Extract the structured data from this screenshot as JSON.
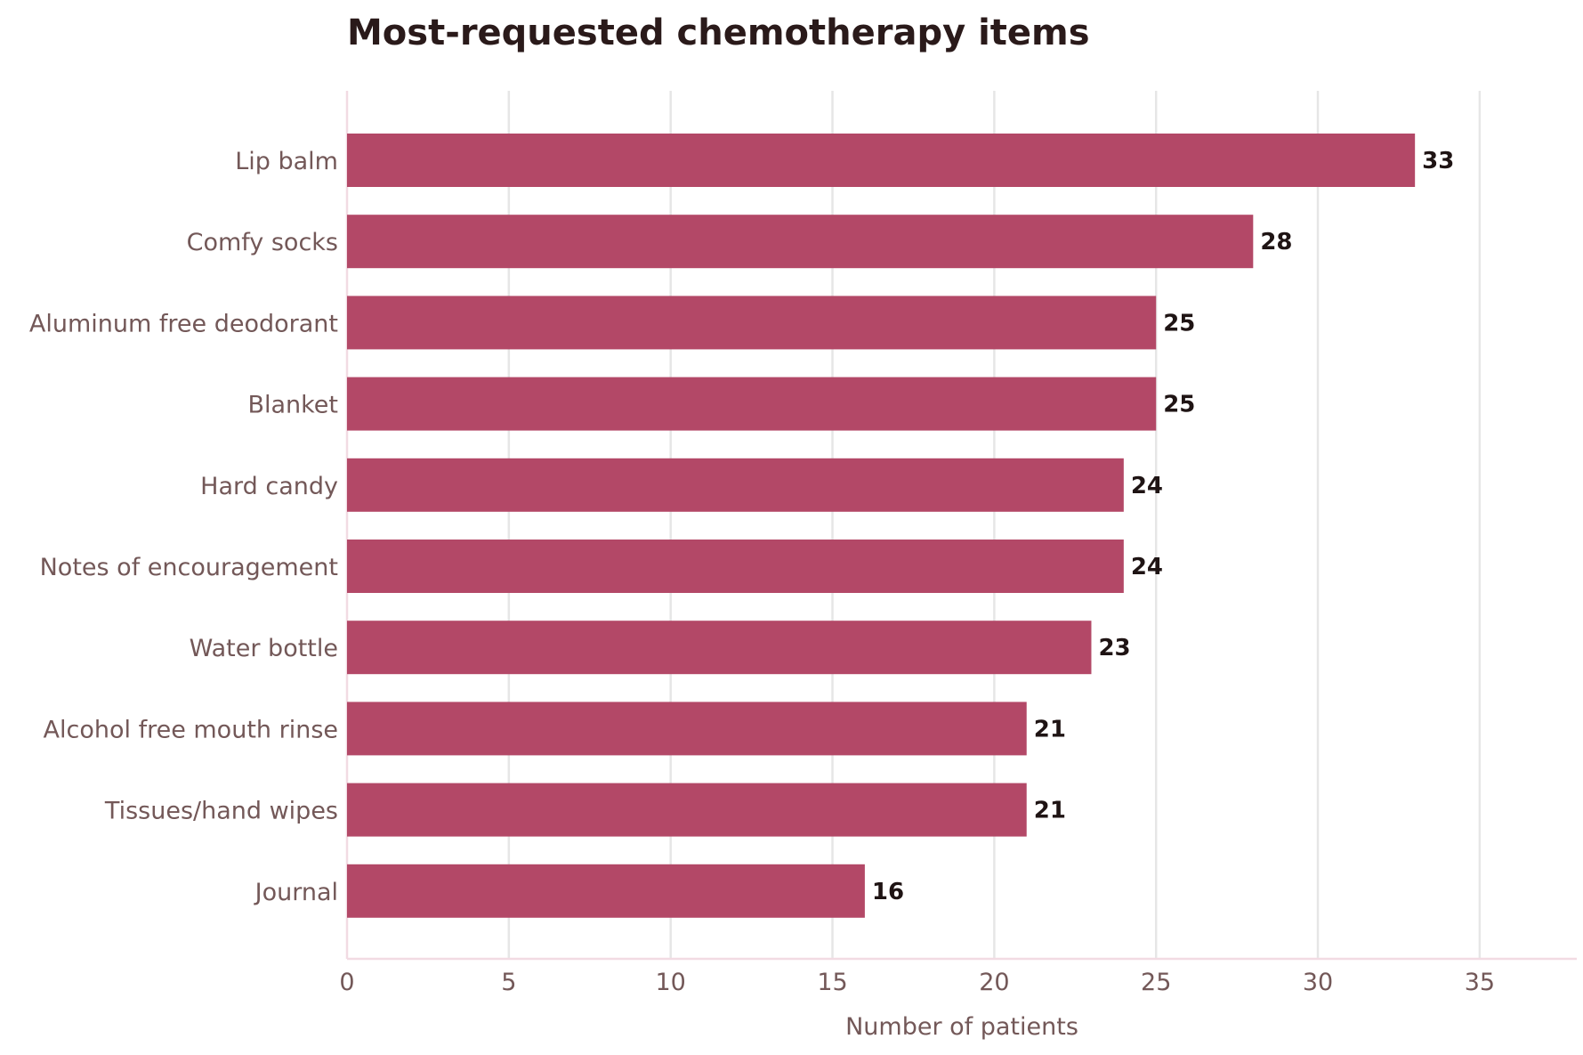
{
  "chart_data": {
    "type": "bar",
    "orientation": "horizontal",
    "title": "Most-requested chemotherapy items",
    "xlabel": "Number of patients",
    "ylabel": "",
    "categories": [
      "Lip balm",
      "Comfy socks",
      "Aluminum free deodorant",
      "Blanket",
      "Hard candy",
      "Notes of encouragement",
      "Water bottle",
      "Alcohol free mouth rinse",
      "Tissues/hand wipes",
      "Journal"
    ],
    "values": [
      33,
      28,
      25,
      25,
      24,
      24,
      23,
      21,
      21,
      16
    ],
    "xlim": [
      0,
      38
    ],
    "xticks": [
      0,
      5,
      10,
      15,
      20,
      25,
      30,
      35
    ],
    "grid": "vertical",
    "legend": "none",
    "colors": {
      "bar": "#b34867",
      "grid": "#e6e6e6",
      "axis": "#f2dbe3",
      "text": "#735858",
      "value_text": "#1f1414",
      "title_text": "#2a1a1a"
    }
  }
}
